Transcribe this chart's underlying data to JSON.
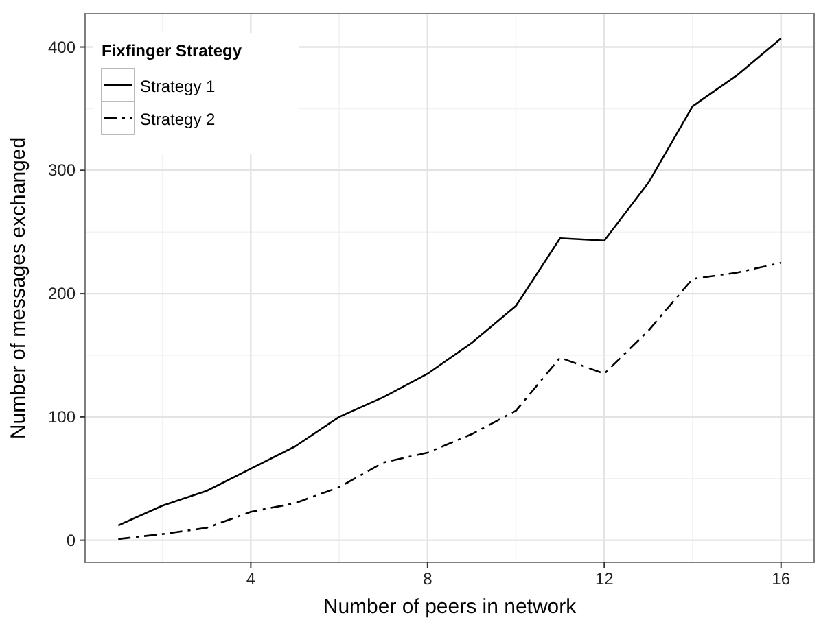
{
  "chart_data": {
    "type": "line",
    "xlabel": "Number of peers in network",
    "ylabel": "Number of messages exchanged",
    "legend_title": "Fixfinger Strategy",
    "x": [
      1,
      2,
      3,
      4,
      5,
      6,
      7,
      8,
      9,
      10,
      11,
      12,
      13,
      14,
      15,
      16
    ],
    "series": [
      {
        "name": "Strategy 1",
        "color": "#000000",
        "line_style": "solid",
        "values": [
          12,
          28,
          40,
          58,
          76,
          100,
          116,
          135,
          160,
          190,
          245,
          243,
          290,
          352,
          377,
          407
        ]
      },
      {
        "name": "Strategy 2",
        "color": "#000000",
        "line_style": "dashdot",
        "values": [
          1,
          5,
          10,
          23,
          30,
          43,
          63,
          71,
          86,
          105,
          148,
          135,
          170,
          212,
          217,
          225
        ]
      }
    ],
    "xlim": [
      0.25,
      16.75
    ],
    "xticks": [
      4,
      8,
      12,
      16
    ],
    "ylim": [
      -18,
      427
    ],
    "yticks": [
      0,
      100,
      200,
      300,
      400
    ],
    "grid": true,
    "legend": "top left",
    "marker": "none"
  }
}
